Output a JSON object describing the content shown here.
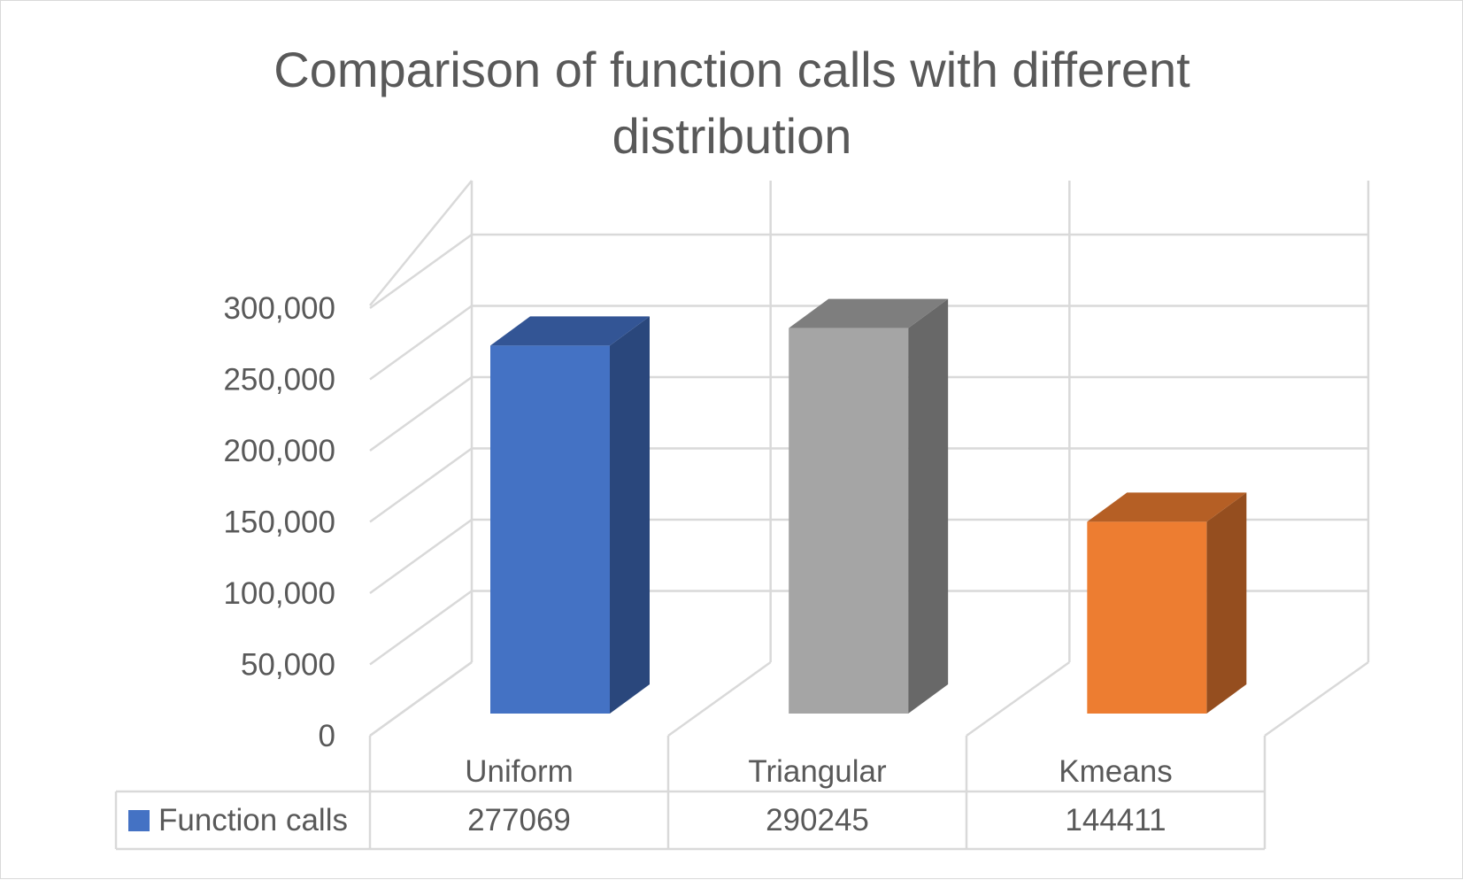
{
  "chart_data": {
    "type": "bar",
    "title_line1": "Comparison of function calls with different",
    "title_line2": "distribution",
    "categories": [
      "Uniform",
      "Triangular",
      "Kmeans"
    ],
    "series": [
      {
        "name": "Function calls",
        "values": [
          277069,
          290245,
          144411
        ],
        "value_labels": [
          "277069",
          "290245",
          "144411"
        ],
        "color": "#4472c4"
      }
    ],
    "bar_colors": [
      {
        "front": "#4472c4",
        "side": "#2a477c",
        "top": "#335595"
      },
      {
        "front": "#a5a5a5",
        "side": "#686868",
        "top": "#7e7e7e"
      },
      {
        "front": "#ed7d31",
        "side": "#954e1f",
        "top": "#b55f25"
      }
    ],
    "y_ticks": [
      {
        "value": 0,
        "label": "0"
      },
      {
        "value": 50000,
        "label": "50,000"
      },
      {
        "value": 100000,
        "label": "100,000"
      },
      {
        "value": 150000,
        "label": "150,000"
      },
      {
        "value": 200000,
        "label": "200,000"
      },
      {
        "value": 250000,
        "label": "250,000"
      },
      {
        "value": 300000,
        "label": "300,000"
      }
    ],
    "ylim": [
      0,
      300000
    ],
    "grid": true,
    "projection": "3d-column",
    "legend": "data-table-below"
  }
}
